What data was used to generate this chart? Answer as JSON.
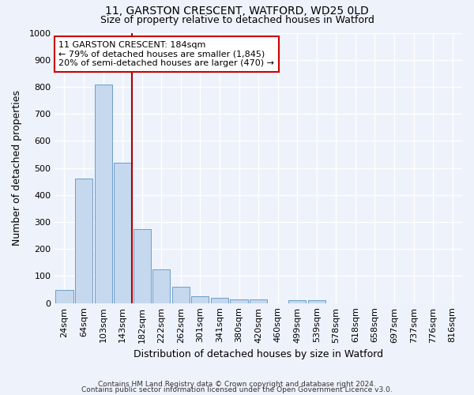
{
  "title1": "11, GARSTON CRESCENT, WATFORD, WD25 0LD",
  "title2": "Size of property relative to detached houses in Watford",
  "xlabel": "Distribution of detached houses by size in Watford",
  "ylabel": "Number of detached properties",
  "bar_color": "#c5d8ee",
  "bar_edge_color": "#6b9ec8",
  "categories": [
    "24sqm",
    "64sqm",
    "103sqm",
    "143sqm",
    "182sqm",
    "222sqm",
    "262sqm",
    "301sqm",
    "341sqm",
    "380sqm",
    "420sqm",
    "460sqm",
    "499sqm",
    "539sqm",
    "578sqm",
    "618sqm",
    "658sqm",
    "697sqm",
    "737sqm",
    "776sqm",
    "816sqm"
  ],
  "values": [
    50,
    460,
    810,
    520,
    275,
    125,
    60,
    25,
    20,
    15,
    15,
    0,
    10,
    10,
    0,
    0,
    0,
    0,
    0,
    0,
    0
  ],
  "property_line_after_index": 3,
  "property_line_color": "#aa0000",
  "annotation_text": "11 GARSTON CRESCENT: 184sqm\n← 79% of detached houses are smaller (1,845)\n20% of semi-detached houses are larger (470) →",
  "annotation_box_facecolor": "#ffffff",
  "annotation_box_edgecolor": "#cc0000",
  "ylim": [
    0,
    1000
  ],
  "yticks": [
    0,
    100,
    200,
    300,
    400,
    500,
    600,
    700,
    800,
    900,
    1000
  ],
  "footer1": "Contains HM Land Registry data © Crown copyright and database right 2024.",
  "footer2": "Contains public sector information licensed under the Open Government Licence v3.0.",
  "background_color": "#eef2fb",
  "grid_color": "#ffffff",
  "title1_fontsize": 10,
  "title2_fontsize": 9,
  "xlabel_fontsize": 9,
  "ylabel_fontsize": 9,
  "tick_fontsize": 8,
  "annot_fontsize": 8,
  "footer_fontsize": 6.5
}
